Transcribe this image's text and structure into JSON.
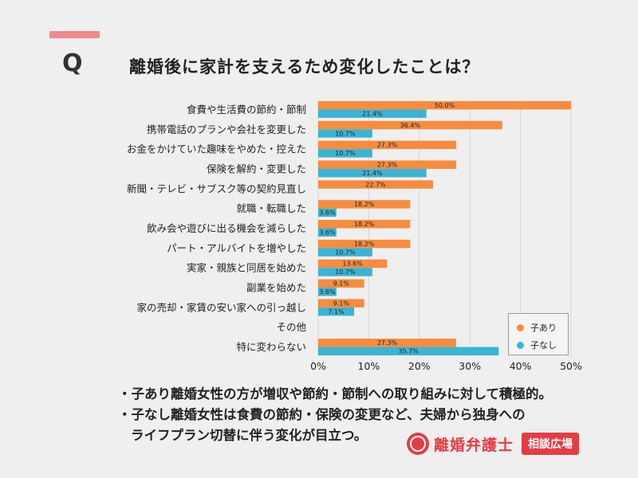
{
  "header": {
    "q": "Q",
    "title": "離婚後に家計を支えるため変化したことは？"
  },
  "chart_data": {
    "type": "bar",
    "orientation": "horizontal",
    "categories": [
      "食費や生活費の節約・節制",
      "携帯電話のプランや会社を変更した",
      "お金をかけていた趣味をやめた・控えた",
      "保険を解約・変更した",
      "新聞・テレビ・サブスク等の契約見直し",
      "就職・転職した",
      "飲み会や遊びに出る機会を減らした",
      "パート・アルバイトを増やした",
      "実家・親族と同居を始めた",
      "副業を始めた",
      "家の売却・家賃の安い家への引っ越し",
      "その他",
      "特に変わらない"
    ],
    "series": [
      {
        "name": "子あり",
        "color": "#f78c3e",
        "values": [
          50.0,
          36.4,
          27.3,
          27.3,
          22.7,
          18.2,
          18.2,
          18.2,
          13.6,
          9.1,
          9.1,
          null,
          27.3
        ]
      },
      {
        "name": "子なし",
        "color": "#3ab4d6",
        "values": [
          21.4,
          10.7,
          10.7,
          21.4,
          null,
          3.6,
          3.6,
          10.7,
          10.7,
          3.6,
          7.1,
          null,
          35.7
        ]
      }
    ],
    "x_ticks": [
      "0%",
      "10%",
      "20%",
      "30%",
      "40%",
      "50%"
    ],
    "xlim": [
      0,
      50
    ],
    "grid": true,
    "legend": "bottom-right"
  },
  "notes": [
    "・子あり離婚女性の方が増収や節約・節制への取り組みに対して積極的。",
    "・子なし離婚女性は食費の節約・保険の変更など、夫婦から独身への",
    "ライフプラン切替に伴う変化が目立つ。"
  ],
  "brand": {
    "name": "離婚弁護士",
    "badge": "相談広場",
    "color": "#e63c44"
  }
}
